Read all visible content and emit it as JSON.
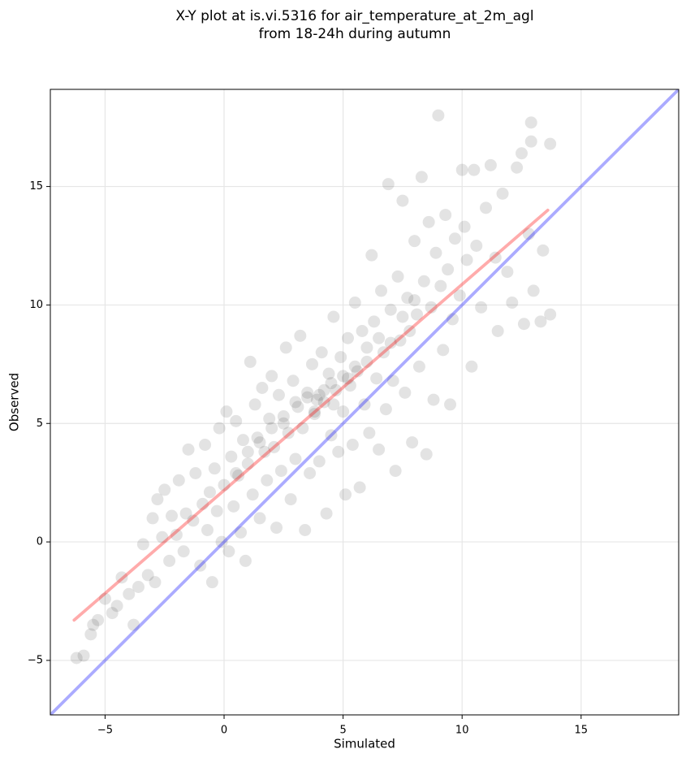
{
  "chart_data": {
    "type": "scatter",
    "title": [
      "X-Y plot at is.vi.5316 for air_temperature_at_2m_agl",
      "from 18-24h during autumn"
    ],
    "x_label": "Simulated",
    "y_label": "Observed",
    "xlim": [
      -7.3,
      19.1
    ],
    "ylim": [
      -7.3,
      19.1
    ],
    "xticks": [
      {
        "value": -5,
        "label": "−5"
      },
      0,
      5,
      10,
      15
    ],
    "yticks": [
      {
        "value": -5,
        "label": "−5"
      },
      0,
      5,
      10,
      15
    ],
    "grid": true,
    "series": [
      {
        "color": "#000000",
        "x": [
          -6.2,
          -5.9,
          -5.6,
          -5.5,
          -5.3,
          -5.0,
          -4.7,
          -4.5,
          -4.3,
          -4.0,
          -3.8,
          -3.6,
          -3.4,
          -3.2,
          -3.0,
          -2.9,
          -2.8,
          -2.6,
          -2.5,
          -2.3,
          -2.2,
          -2.0,
          -1.9,
          -1.7,
          -1.6,
          -1.5,
          -1.3,
          -1.2,
          -1.0,
          -0.9,
          -0.8,
          -0.7,
          -0.6,
          -0.5,
          -0.4,
          -0.3,
          -0.2,
          -0.1,
          0.0,
          0.1,
          0.2,
          0.3,
          0.4,
          0.5,
          0.6,
          0.7,
          0.8,
          0.9,
          1.0,
          1.1,
          1.2,
          1.3,
          1.4,
          1.5,
          1.6,
          1.7,
          1.8,
          1.9,
          2.0,
          2.1,
          2.2,
          2.3,
          2.4,
          2.5,
          2.6,
          2.7,
          2.8,
          2.9,
          3.0,
          3.1,
          3.2,
          3.3,
          3.4,
          3.5,
          3.6,
          3.7,
          3.8,
          3.9,
          4.0,
          4.1,
          4.2,
          4.3,
          4.4,
          4.5,
          4.6,
          4.7,
          4.8,
          4.9,
          5.0,
          5.1,
          5.2,
          5.3,
          5.4,
          5.5,
          5.6,
          5.7,
          5.8,
          5.9,
          6.0,
          6.1,
          6.2,
          6.3,
          6.4,
          6.5,
          6.6,
          6.7,
          6.8,
          6.9,
          7.0,
          7.1,
          7.2,
          7.3,
          7.4,
          7.5,
          7.6,
          7.7,
          7.8,
          7.9,
          8.0,
          8.1,
          8.2,
          8.3,
          8.4,
          8.5,
          8.6,
          8.7,
          8.8,
          8.9,
          9.0,
          9.1,
          9.2,
          9.3,
          9.4,
          9.5,
          9.6,
          9.7,
          9.9,
          10.0,
          10.1,
          10.2,
          10.4,
          10.5,
          10.6,
          10.8,
          11.0,
          11.2,
          11.4,
          11.5,
          11.7,
          11.9,
          12.1,
          12.3,
          12.5,
          12.6,
          12.8,
          12.9,
          13.0,
          13.3,
          13.4,
          13.7,
          13.7,
          12.9,
          1.5,
          2.0,
          2.5,
          3.0,
          3.5,
          4.0,
          4.5,
          5.0,
          5.5,
          6.0,
          3.8,
          4.2,
          4.6,
          5.2,
          6.5,
          7.0,
          7.5,
          8.0,
          1.0,
          0.5
        ],
        "values": [
          -4.9,
          -4.8,
          -3.9,
          -3.5,
          -3.3,
          -2.4,
          -3.0,
          -2.7,
          -1.5,
          -2.2,
          -3.5,
          -1.9,
          -0.1,
          -1.4,
          1.0,
          -1.7,
          1.8,
          0.2,
          2.2,
          -0.8,
          1.1,
          0.3,
          2.6,
          -0.4,
          1.2,
          3.9,
          0.9,
          2.9,
          -1.0,
          1.6,
          4.1,
          0.5,
          2.1,
          -1.7,
          3.1,
          1.3,
          4.8,
          0.0,
          2.4,
          5.5,
          -0.4,
          3.6,
          1.5,
          5.1,
          2.8,
          0.4,
          4.3,
          -0.8,
          3.3,
          7.6,
          2.0,
          5.8,
          4.4,
          1.0,
          6.5,
          3.8,
          2.6,
          5.2,
          7.0,
          4.0,
          0.6,
          6.2,
          3.0,
          5.0,
          8.2,
          4.6,
          1.8,
          6.8,
          3.5,
          5.7,
          8.7,
          4.8,
          0.5,
          6.3,
          2.9,
          7.5,
          5.4,
          6.0,
          3.4,
          8.0,
          5.9,
          1.2,
          7.1,
          4.5,
          9.5,
          6.4,
          3.8,
          7.8,
          5.5,
          2.0,
          8.6,
          6.6,
          4.1,
          10.1,
          7.2,
          2.3,
          8.9,
          5.8,
          7.6,
          4.6,
          12.1,
          9.3,
          6.9,
          3.9,
          10.6,
          8.0,
          5.6,
          15.1,
          9.8,
          6.8,
          3.0,
          11.2,
          8.5,
          14.4,
          6.3,
          10.3,
          8.9,
          4.2,
          12.7,
          9.6,
          7.4,
          15.4,
          11.0,
          3.7,
          13.5,
          9.9,
          6.0,
          12.2,
          18.0,
          10.8,
          8.1,
          13.8,
          11.5,
          5.8,
          9.4,
          12.8,
          10.4,
          15.7,
          13.3,
          11.9,
          7.4,
          15.7,
          12.5,
          9.9,
          14.1,
          15.9,
          12.0,
          8.9,
          14.7,
          11.4,
          10.1,
          15.8,
          16.4,
          9.2,
          13.0,
          16.9,
          10.6,
          9.3,
          12.3,
          16.8,
          9.6,
          17.7,
          4.2,
          4.8,
          5.3,
          5.9,
          6.1,
          6.2,
          6.7,
          7.0,
          7.4,
          8.2,
          5.5,
          6.4,
          5.8,
          6.9,
          8.6,
          8.4,
          9.5,
          10.2,
          3.8,
          2.9
        ]
      }
    ],
    "lines": [
      {
        "color": "#0000ff",
        "x": [
          -7.3,
          19.1
        ],
        "values": [
          -7.3,
          19.1
        ]
      },
      {
        "color": "#ff0000",
        "x": [
          -6.3,
          13.6
        ],
        "values": [
          -3.3,
          14.0
        ]
      }
    ]
  }
}
